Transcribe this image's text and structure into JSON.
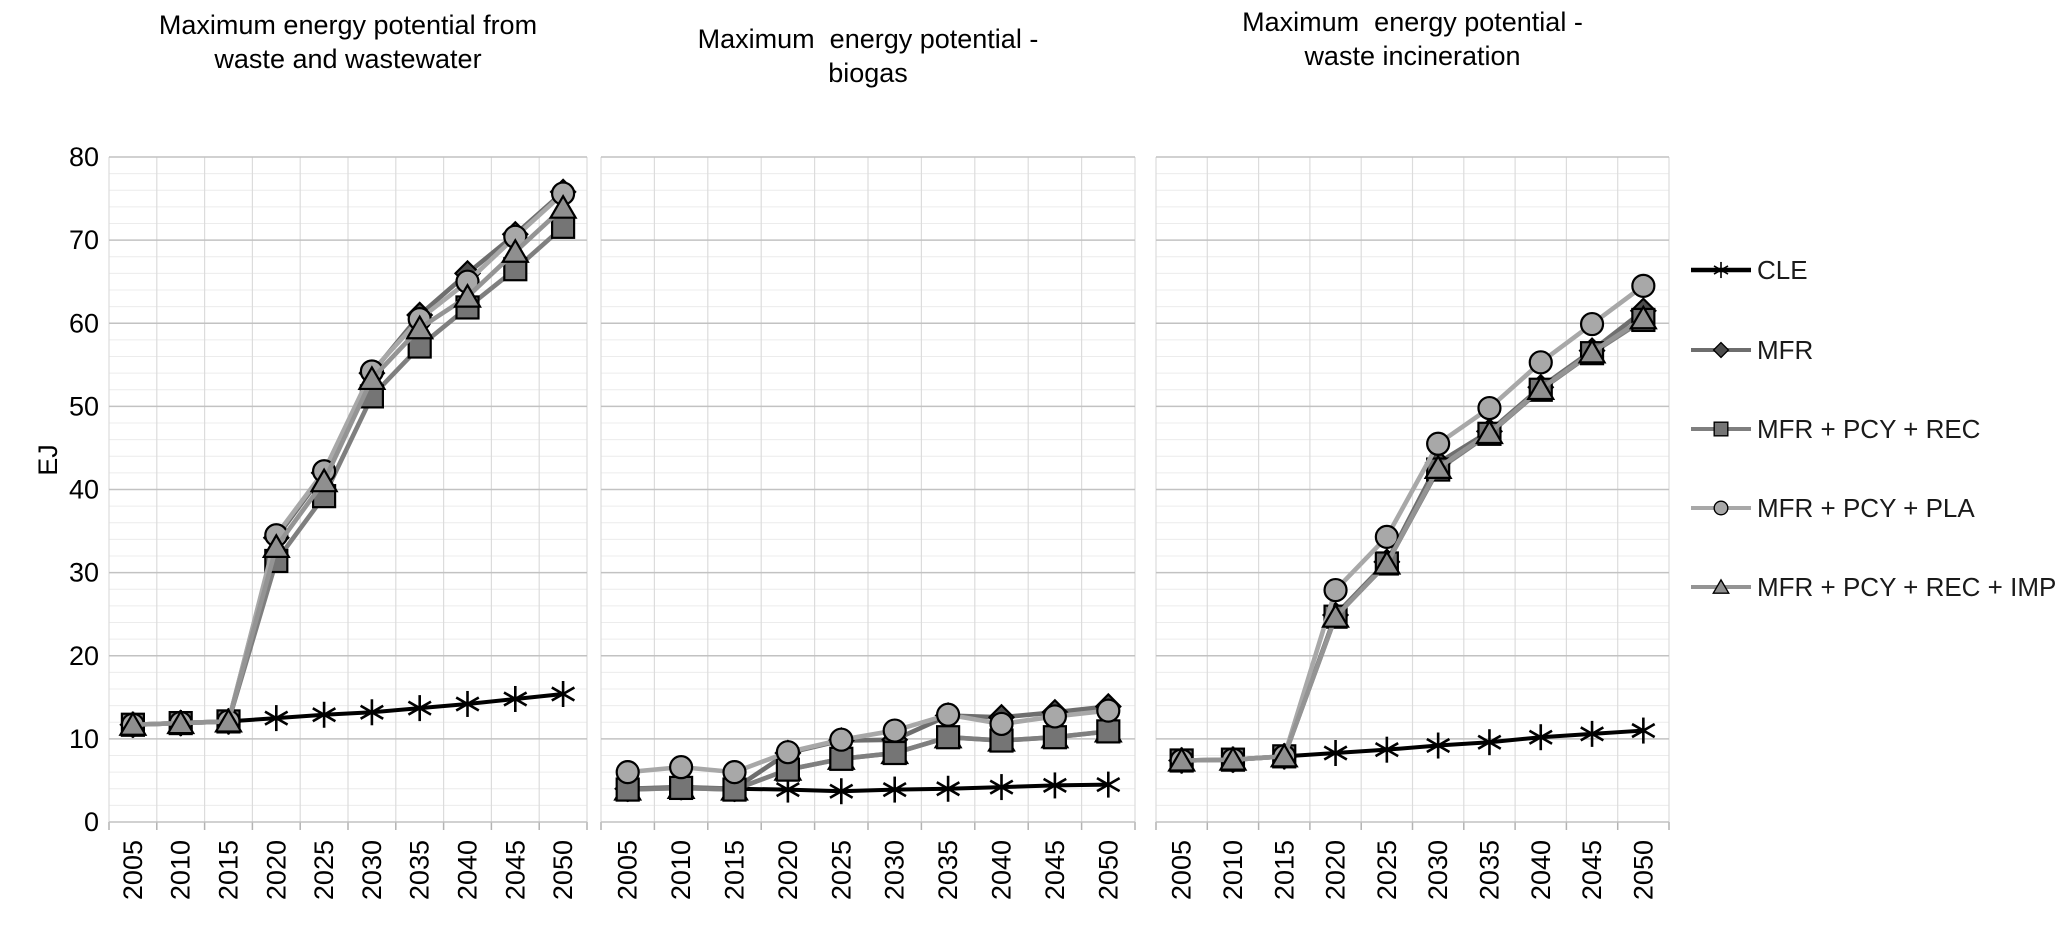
{
  "y_axis": {
    "label": "EJ",
    "min": 0,
    "max": 80,
    "major_step": 10,
    "minor_step": 2,
    "ticks": [
      0,
      10,
      20,
      30,
      40,
      50,
      60,
      70,
      80
    ]
  },
  "x_axis": {
    "categories": [
      "2005",
      "2010",
      "2015",
      "2020",
      "2025",
      "2030",
      "2035",
      "2040",
      "2045",
      "2050"
    ]
  },
  "legend": {
    "items": [
      {
        "label": "CLE",
        "marker": "star",
        "line_color": "#000000",
        "fill": "#000000"
      },
      {
        "label": "MFR",
        "marker": "diamond",
        "line_color": "#6e6e6e",
        "fill": "#4d4d4d"
      },
      {
        "label": "MFR + PCY + REC",
        "marker": "square",
        "line_color": "#7f7f7f",
        "fill": "#757575"
      },
      {
        "label": "MFR + PCY + PLA",
        "marker": "circle",
        "line_color": "#a8a8a8",
        "fill": "#a8a8a8"
      },
      {
        "label": "MFR + PCY + REC + IMP",
        "marker": "triangle",
        "line_color": "#949494",
        "fill": "#8f8f8f"
      }
    ]
  },
  "chart_data": [
    {
      "type": "line",
      "title_lines": [
        "Maximum energy potential from",
        "waste and wastewater"
      ],
      "ylabel": "EJ",
      "ylim": [
        0,
        80
      ],
      "grid": true,
      "legend_position": "right",
      "categories": [
        "2005",
        "2010",
        "2015",
        "2020",
        "2025",
        "2030",
        "2035",
        "2040",
        "2045",
        "2050"
      ],
      "z_order": [
        "CLE",
        "MFR",
        "REC",
        "PLA",
        "IMP"
      ],
      "series": [
        {
          "key": "CLE",
          "name": "CLE",
          "values": [
            11.7,
            11.9,
            12.1,
            12.5,
            12.9,
            13.2,
            13.7,
            14.2,
            14.8,
            15.4
          ]
        },
        {
          "key": "MFR",
          "name": "MFR",
          "values": [
            11.7,
            11.9,
            12.1,
            34.2,
            42.0,
            54.0,
            61.0,
            66.0,
            70.7,
            75.8
          ]
        },
        {
          "key": "REC",
          "name": "MFR + PCY + REC",
          "values": [
            11.7,
            11.9,
            12.1,
            31.4,
            39.2,
            51.2,
            57.2,
            61.9,
            66.5,
            71.6
          ]
        },
        {
          "key": "PLA",
          "name": "MFR + PCY + PLA",
          "values": [
            11.7,
            11.9,
            12.1,
            34.5,
            42.2,
            54.2,
            60.5,
            65.0,
            70.4,
            75.6
          ]
        },
        {
          "key": "IMP",
          "name": "MFR + PCY + REC + IMP",
          "values": [
            11.7,
            11.9,
            12.1,
            33.1,
            41.0,
            53.3,
            59.4,
            63.2,
            68.6,
            73.9
          ]
        }
      ]
    },
    {
      "type": "line",
      "title_lines": [
        "Maximum  energy potential -",
        "biogas"
      ],
      "ylabel": "EJ",
      "ylim": [
        0,
        80
      ],
      "grid": true,
      "legend_position": "right",
      "categories": [
        "2005",
        "2010",
        "2015",
        "2020",
        "2025",
        "2030",
        "2035",
        "2040",
        "2045",
        "2050"
      ],
      "z_order": [
        "CLE",
        "IMP",
        "MFR",
        "REC",
        "PLA"
      ],
      "series": [
        {
          "key": "CLE",
          "name": "CLE",
          "values": [
            4.0,
            4.2,
            4.0,
            3.9,
            3.7,
            3.9,
            4.0,
            4.2,
            4.4,
            4.5
          ]
        },
        {
          "key": "MFR",
          "name": "MFR",
          "values": [
            4.0,
            4.2,
            4.0,
            8.3,
            9.8,
            9.9,
            12.8,
            12.6,
            13.2,
            13.9
          ]
        },
        {
          "key": "REC",
          "name": "MFR + PCY + REC",
          "values": [
            3.9,
            4.1,
            3.9,
            6.3,
            7.6,
            8.3,
            10.2,
            9.8,
            10.2,
            10.9
          ]
        },
        {
          "key": "PLA",
          "name": "MFR + PCY + PLA",
          "values": [
            6.0,
            6.6,
            6.0,
            8.4,
            9.9,
            11.0,
            12.9,
            11.8,
            12.7,
            13.4
          ]
        },
        {
          "key": "IMP",
          "name": "MFR + PCY + REC + IMP",
          "values": [
            3.9,
            4.1,
            3.9,
            6.3,
            7.6,
            8.3,
            10.2,
            9.8,
            10.2,
            10.9
          ]
        }
      ]
    },
    {
      "type": "line",
      "title_lines": [
        "Maximum  energy potential -",
        "waste incineration"
      ],
      "ylabel": "EJ",
      "ylim": [
        0,
        80
      ],
      "grid": true,
      "legend_position": "right",
      "categories": [
        "2005",
        "2010",
        "2015",
        "2020",
        "2025",
        "2030",
        "2035",
        "2040",
        "2045",
        "2050"
      ],
      "z_order": [
        "CLE",
        "MFR",
        "REC",
        "PLA",
        "IMP"
      ],
      "series": [
        {
          "key": "CLE",
          "name": "CLE",
          "values": [
            7.4,
            7.5,
            7.9,
            8.3,
            8.7,
            9.2,
            9.6,
            10.2,
            10.6,
            11.0
          ]
        },
        {
          "key": "MFR",
          "name": "MFR",
          "values": [
            7.4,
            7.5,
            7.9,
            24.9,
            31.3,
            43.2,
            47.0,
            52.3,
            56.7,
            61.5
          ]
        },
        {
          "key": "REC",
          "name": "MFR + PCY + REC",
          "values": [
            7.4,
            7.5,
            7.9,
            24.7,
            31.1,
            42.4,
            46.7,
            52.0,
            56.4,
            60.4
          ]
        },
        {
          "key": "PLA",
          "name": "MFR + PCY + PLA",
          "values": [
            7.4,
            7.5,
            7.9,
            27.9,
            34.3,
            45.5,
            49.8,
            55.3,
            59.9,
            64.5
          ]
        },
        {
          "key": "IMP",
          "name": "MFR + PCY + REC + IMP",
          "values": [
            7.4,
            7.5,
            7.9,
            24.7,
            31.1,
            42.6,
            46.8,
            52.1,
            56.5,
            60.6
          ]
        }
      ]
    }
  ],
  "colors": {
    "background": "#ffffff",
    "major_gridline": "#c2c2c2",
    "minor_gridline": "#ececec",
    "vertical_gridline": "#dcdcdc",
    "axis_line": "#b3b3b3",
    "tick_text": "#000000"
  }
}
